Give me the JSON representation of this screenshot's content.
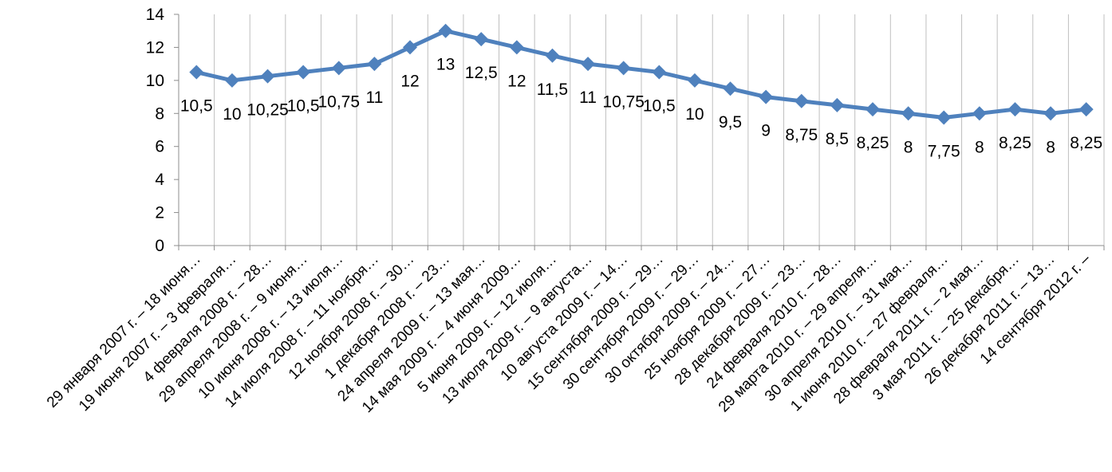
{
  "chart_data": {
    "type": "line",
    "title": "",
    "xlabel": "",
    "ylabel": "",
    "ylim": [
      0,
      14
    ],
    "yticks": [
      "0",
      "2",
      "4",
      "6",
      "8",
      "10",
      "12",
      "14"
    ],
    "grid": "vertical",
    "legend": "none",
    "series_color": "#4f81bd",
    "marker": "diamond",
    "categories": [
      "29 января 2007 г. – 18 июня…",
      "19 июня 2007 г. – 3 февраля…",
      "4 февраля 2008 г. – 28…",
      "29 апреля 2008 г. – 9 июня…",
      "10 июня 2008 г. – 13 июля…",
      "14 июля 2008 г. – 11 ноября…",
      "12 ноября 2008 г. – 30…",
      "1 декабря 2008 г. – 23…",
      "24 апреля 2009 г. – 13 мая…",
      "14 мая 2009 г. – 4 июня 2009…",
      "5 июня 2009 г. – 12 июля…",
      "13 июля 2009 г. – 9 августа…",
      "10 августа 2009 г. – 14…",
      "15 сентября 2009 г. – 29…",
      "30 сентября 2009 г. – 29…",
      "30 октября 2009 г. – 24…",
      "25 ноября 2009 г. – 27…",
      "28 декабря 2009 г. – 23…",
      "24 февраля 2010 г. – 28…",
      "29 марта 2010 г. – 29 апреля…",
      "30 апреля 2010 г. – 31 мая…",
      "1 июня 2010 г. – 27 февраля…",
      "28 февраля 2011 г. – 2 мая…",
      "3 мая 2011 г. – 25 декабря…",
      "26 декабря 2011 г. – 13…",
      "14 сентября 2012 г. –"
    ],
    "values": [
      10.5,
      10,
      10.25,
      10.5,
      10.75,
      11,
      12,
      13,
      12.5,
      12,
      11.5,
      11,
      10.75,
      10.5,
      10,
      9.5,
      9,
      8.75,
      8.5,
      8.25,
      8,
      7.75,
      8,
      8.25,
      8,
      8.25
    ],
    "data_labels": [
      "10,5",
      "10",
      "10,25",
      "10,5",
      "10,75",
      "11",
      "12",
      "13",
      "12,5",
      "12",
      "11,5",
      "11",
      "10,75",
      "10,5",
      "10",
      "9,5",
      "9",
      "8,75",
      "8,5",
      "8,25",
      "8",
      "7,75",
      "8",
      "8,25",
      "8",
      "8,25"
    ]
  }
}
